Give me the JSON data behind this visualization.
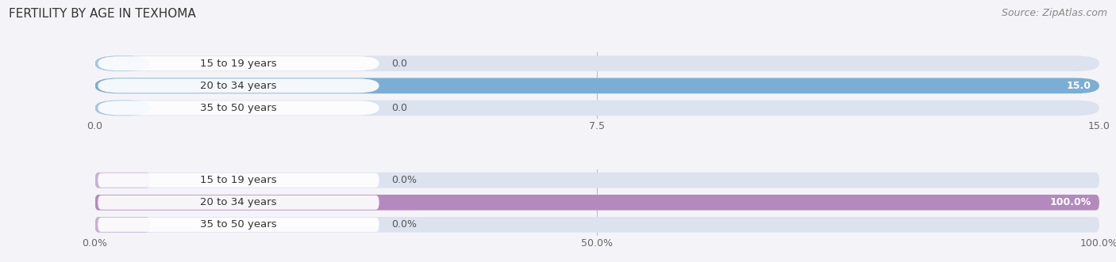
{
  "title": "FERTILITY BY AGE IN TEXHOMA",
  "source": "Source: ZipAtlas.com",
  "top_chart": {
    "categories": [
      "15 to 19 years",
      "20 to 34 years",
      "35 to 50 years"
    ],
    "values": [
      0.0,
      15.0,
      0.0
    ],
    "xlim": [
      0,
      15.0
    ],
    "xticks": [
      0.0,
      7.5,
      15.0
    ],
    "xtick_labels": [
      "0.0",
      "7.5",
      "15.0"
    ],
    "bar_color": "#7baed4",
    "bg_color": "#dde2ef",
    "label_bg_color": "#ffffff",
    "label_color_inside": "#ffffff",
    "label_color_outside": "#555555"
  },
  "bottom_chart": {
    "categories": [
      "15 to 19 years",
      "20 to 34 years",
      "35 to 50 years"
    ],
    "values": [
      0.0,
      100.0,
      0.0
    ],
    "xlim": [
      0,
      100.0
    ],
    "xticks": [
      0.0,
      50.0,
      100.0
    ],
    "xtick_labels": [
      "0.0%",
      "50.0%",
      "100.0%"
    ],
    "bar_color": "#b48abe",
    "bg_color": "#dde2ef",
    "label_bg_color": "#ffffff",
    "label_color_inside": "#ffffff",
    "label_color_outside": "#555555"
  },
  "title_fontsize": 11,
  "source_fontsize": 9,
  "label_fontsize": 9,
  "cat_fontsize": 9.5,
  "tick_fontsize": 9,
  "background_color": "#f4f4f8",
  "chart_bg_color": "#f4f4f8"
}
